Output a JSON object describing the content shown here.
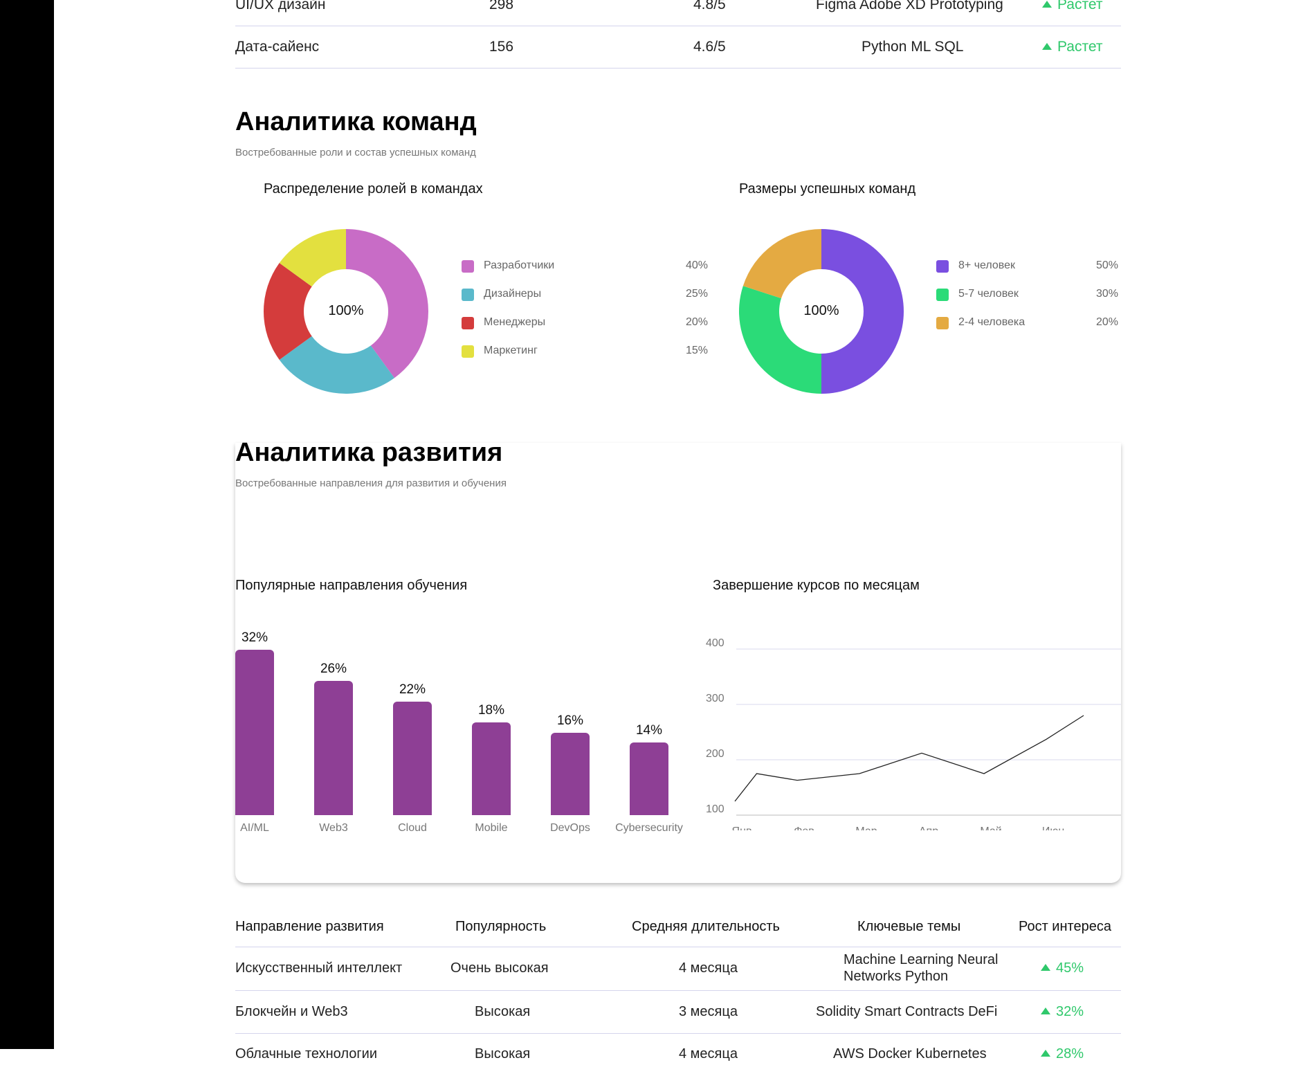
{
  "skills_table": {
    "rows": [
      {
        "name": "UI/UX дизайн",
        "count": "298",
        "rating": "4.8/5",
        "tools": "Figma Adobe XD Prototyping",
        "trend": "Растет"
      },
      {
        "name": "Дата-сайенс",
        "count": "156",
        "rating": "4.6/5",
        "tools": "Python ML SQL",
        "trend": "Растет"
      }
    ]
  },
  "team_analytics": {
    "title": "Аналитика команд",
    "subtitle": "Востребованные роли и состав успешных команд",
    "roles_chart": {
      "title": "Распределение ролей в командах",
      "center": "100%",
      "items": [
        {
          "label": "Разработчики",
          "value": 40,
          "pct": "40%",
          "color": "#c86cc6"
        },
        {
          "label": "Дизайнеры",
          "value": 25,
          "pct": "25%",
          "color": "#5ab9cb"
        },
        {
          "label": "Менеджеры",
          "value": 20,
          "pct": "20%",
          "color": "#d43c3c"
        },
        {
          "label": "Маркетинг",
          "value": 15,
          "pct": "15%",
          "color": "#e3e03f"
        }
      ]
    },
    "sizes_chart": {
      "title": "Размеры успешных команд",
      "center": "100%",
      "items": [
        {
          "label": "8+ человек",
          "value": 50,
          "pct": "50%",
          "color": "#7a4fe0"
        },
        {
          "label": "5-7 человек",
          "value": 30,
          "pct": "30%",
          "color": "#2bdb78"
        },
        {
          "label": "2-4 человека",
          "value": 20,
          "pct": "20%",
          "color": "#e4aa42"
        }
      ]
    }
  },
  "dev_analytics": {
    "title": "Аналитика развития",
    "subtitle": "Востребованные направления для развития и обучения",
    "bar_title": "Популярные направления обучения",
    "line_title": "Завершение курсов по месяцам"
  },
  "chart_data": [
    {
      "type": "pie",
      "title": "Распределение ролей в командах",
      "categories": [
        "Разработчики",
        "Дизайнеры",
        "Менеджеры",
        "Маркетинг"
      ],
      "values": [
        40,
        25,
        20,
        15
      ]
    },
    {
      "type": "pie",
      "title": "Размеры успешных команд",
      "categories": [
        "8+ человек",
        "5-7 человек",
        "2-4 человека"
      ],
      "values": [
        50,
        30,
        20
      ]
    },
    {
      "type": "bar",
      "title": "Популярные направления обучения",
      "categories": [
        "AI/ML",
        "Web3",
        "Cloud",
        "Mobile",
        "DevOps",
        "Cybersecurity"
      ],
      "values": [
        32,
        26,
        22,
        18,
        16,
        14
      ],
      "labels": [
        "32%",
        "26%",
        "22%",
        "18%",
        "16%",
        "14%"
      ],
      "ylim": [
        0,
        32
      ]
    },
    {
      "type": "line",
      "title": "Завершение курсов по месяцам",
      "x_ticks": [
        "Янв",
        "Фев",
        "Мар",
        "Апр",
        "Май",
        "Июн"
      ],
      "y_ticks": [
        "400",
        "300",
        "200",
        "100"
      ],
      "points": [
        {
          "x": 0,
          "y": 125
        },
        {
          "x": 0.35,
          "y": 175
        },
        {
          "x": 1.0,
          "y": 163
        },
        {
          "x": 2.0,
          "y": 175
        },
        {
          "x": 3.0,
          "y": 212
        },
        {
          "x": 4.0,
          "y": 175
        },
        {
          "x": 5.0,
          "y": 237
        },
        {
          "x": 5.6,
          "y": 280
        }
      ],
      "ylim": [
        100,
        400
      ]
    }
  ],
  "dev_table": {
    "headers": [
      "Направление развития",
      "Популярность",
      "Средняя длительность",
      "Ключевые темы",
      "Рост интереса"
    ],
    "rows": [
      {
        "name": "Искусственный интеллект",
        "popularity": "Очень высокая",
        "duration": "4 месяца",
        "topics": [
          "Machine Learning Neural",
          "Networks Python"
        ],
        "growth": "45%"
      },
      {
        "name": "Блокчейн и Web3",
        "popularity": "Высокая",
        "duration": "3 месяца",
        "topics": [
          "Solidity Smart Contracts DeFi"
        ],
        "growth": "32%"
      },
      {
        "name": "Облачные технологии",
        "popularity": "Высокая",
        "duration": "4 месяца",
        "topics": [
          "AWS Docker Kubernetes"
        ],
        "growth": "28%"
      }
    ]
  }
}
